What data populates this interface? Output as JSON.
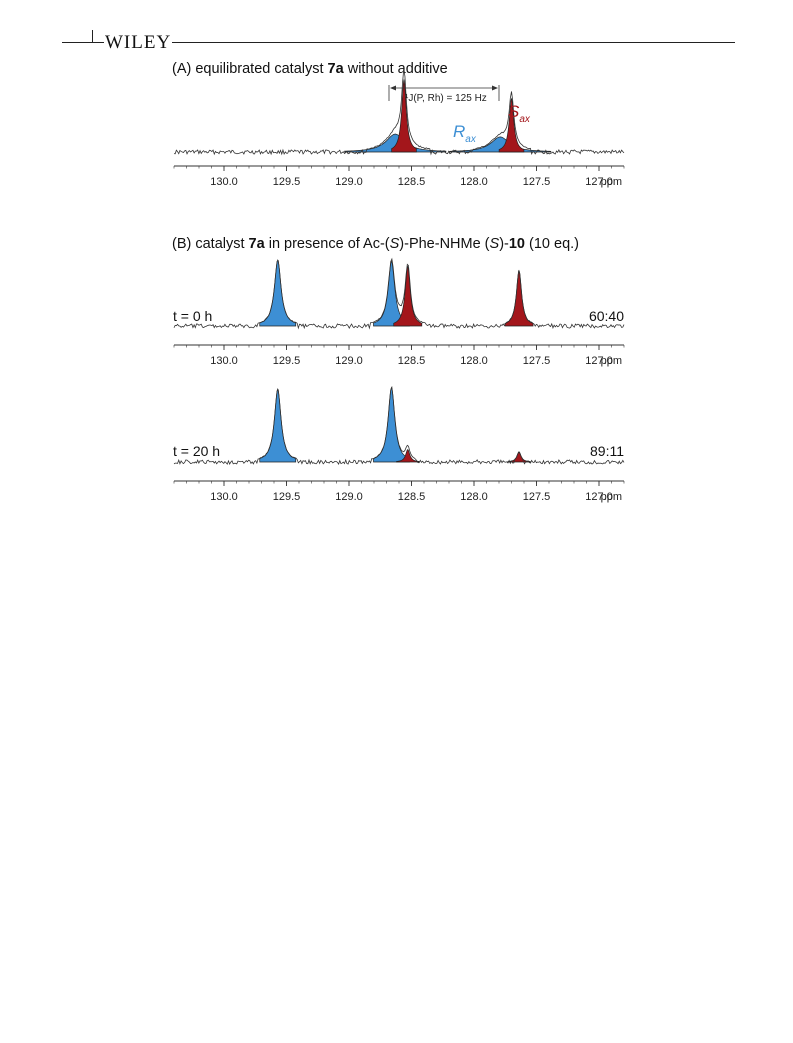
{
  "header": {
    "brand": "WILEY"
  },
  "colors": {
    "R_ax": "#3d8fd4",
    "S_ax": "#a3161b",
    "baseline": "#333333"
  },
  "panel_A": {
    "title_parts": {
      "pre": "(A) equilibrated catalyst ",
      "bold": "7a",
      "post": " without additive"
    },
    "coupling_label": "¹J(P, Rh) = 125 Hz",
    "label_S_main": "S",
    "label_S_sub": "ax",
    "label_R_main": "R",
    "label_R_sub": "ax"
  },
  "panel_B": {
    "title_parts": {
      "pre": "(B) catalyst ",
      "bold1": "7a",
      "mid1": " in presence of Ac-(",
      "ital1": "S",
      "mid2": ")-Phe-NHMe (",
      "ital2": "S",
      "mid3": ")-",
      "bold2": "10",
      "post": " (10 eq.)"
    }
  },
  "chart_data": [
    {
      "type": "line",
      "title": "(A) equilibrated catalyst 7a without additive",
      "xlabel": "ppm",
      "xlim": [
        130.4,
        126.8
      ],
      "x_reversed": true,
      "x_ticks": [
        130.0,
        129.5,
        129.0,
        128.5,
        128.0,
        127.5,
        127.0
      ],
      "tick_labels": [
        "130.0",
        "129.5",
        "129.0",
        "128.5",
        "128.0",
        "127.5",
        "127.0"
      ],
      "annotation": "¹J(P, Rh) = 125 Hz",
      "series": [
        {
          "name": "R",
          "color": "#3d8fd4",
          "peaks": [
            {
              "ppm": 128.63,
              "height": 0.25,
              "width": 0.09
            },
            {
              "ppm": 127.79,
              "height": 0.21,
              "width": 0.09
            }
          ]
        },
        {
          "name": "S",
          "color": "#a3161b",
          "peaks": [
            {
              "ppm": 128.56,
              "height": 1.0,
              "width": 0.022
            },
            {
              "ppm": 127.7,
              "height": 0.74,
              "width": 0.022
            }
          ]
        }
      ]
    },
    {
      "type": "line",
      "label": "t = 0 h",
      "ratio": "60:40",
      "xlabel": "ppm",
      "xlim": [
        130.4,
        126.8
      ],
      "x_reversed": true,
      "x_ticks": [
        130.0,
        129.5,
        129.0,
        128.5,
        128.0,
        127.5,
        127.0
      ],
      "tick_labels": [
        "130.0",
        "129.5",
        "129.0",
        "128.5",
        "128.0",
        "127.5",
        "127.0"
      ],
      "series": [
        {
          "name": "R",
          "color": "#3d8fd4",
          "peaks": [
            {
              "ppm": 129.57,
              "height": 1.0,
              "width": 0.032
            },
            {
              "ppm": 128.66,
              "height": 0.98,
              "width": 0.032
            }
          ]
        },
        {
          "name": "S",
          "color": "#a3161b",
          "peaks": [
            {
              "ppm": 128.53,
              "height": 0.9,
              "width": 0.025
            },
            {
              "ppm": 127.64,
              "height": 0.84,
              "width": 0.025
            }
          ]
        }
      ]
    },
    {
      "type": "line",
      "label": "t = 20 h",
      "ratio": "89:11",
      "xlabel": "ppm",
      "xlim": [
        130.4,
        126.8
      ],
      "x_reversed": true,
      "x_ticks": [
        130.0,
        129.5,
        129.0,
        128.5,
        128.0,
        127.5,
        127.0
      ],
      "tick_labels": [
        "130.0",
        "129.5",
        "129.0",
        "128.5",
        "128.0",
        "127.5",
        "127.0"
      ],
      "series": [
        {
          "name": "R",
          "color": "#3d8fd4",
          "peaks": [
            {
              "ppm": 129.57,
              "height": 1.0,
              "width": 0.032
            },
            {
              "ppm": 128.66,
              "height": 1.02,
              "width": 0.032
            }
          ]
        },
        {
          "name": "S",
          "color": "#a3161b",
          "peaks": [
            {
              "ppm": 128.53,
              "height": 0.17,
              "width": 0.02
            },
            {
              "ppm": 127.64,
              "height": 0.14,
              "width": 0.02
            }
          ]
        }
      ]
    }
  ]
}
